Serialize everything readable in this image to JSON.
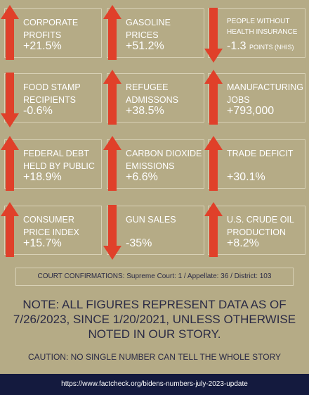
{
  "tiles": [
    {
      "label": "CORPORATE PROFITS",
      "value": "+21.5%",
      "dir": "up"
    },
    {
      "label": "GASOLINE PRICES",
      "value": "+51.2%",
      "dir": "up"
    },
    {
      "label": "PEOPLE WITHOUT HEALTH INSURANCE",
      "value": "-1.3",
      "unit": "POINTS (NHIS)",
      "dir": "down"
    },
    {
      "label": "FOOD STAMP RECIPIENTS",
      "value": "-0.6%",
      "dir": "down"
    },
    {
      "label": "REFUGEE ADMISSONS",
      "value": "+38.5%",
      "dir": "up"
    },
    {
      "label": "MANUFACTURING JOBS",
      "value": "+793,000",
      "dir": "up"
    },
    {
      "label": "FEDERAL DEBT HELD BY PUBLIC",
      "value": "+18.9%",
      "dir": "up"
    },
    {
      "label": "CARBON DIOXIDE EMISSIONS",
      "value": "+6.6%",
      "dir": "up"
    },
    {
      "label": "TRADE DEFICIT",
      "value": "+30.1%",
      "dir": "up"
    },
    {
      "label": "CONSUMER PRICE INDEX",
      "value": "+15.7%",
      "dir": "up"
    },
    {
      "label": "GUN SALES",
      "value": "-35%",
      "dir": "down"
    },
    {
      "label": "U.S. CRUDE OIL PRODUCTION",
      "value": "+8.2%",
      "dir": "up"
    }
  ],
  "court": "COURT CONFIRMATIONS:  Supreme Court: 1 / Appellate: 36 / District: 103",
  "note": "NOTE:  ALL FIGURES REPRESENT DATA AS OF 7/26/2023, SINCE 1/20/2021, UNLESS OTHERWISE NOTED IN OUR STORY.",
  "caution": "CAUTION: NO SINGLE NUMBER CAN TELL THE WHOLE STORY",
  "url": "https://www.factcheck.org/bidens-numbers-july-2023-update",
  "colors": {
    "arrow": "#e0402a",
    "background": "#b5ab86",
    "footer": "#141a3e"
  },
  "icons": {
    "up": "arrow-up-icon",
    "down": "arrow-down-icon"
  }
}
